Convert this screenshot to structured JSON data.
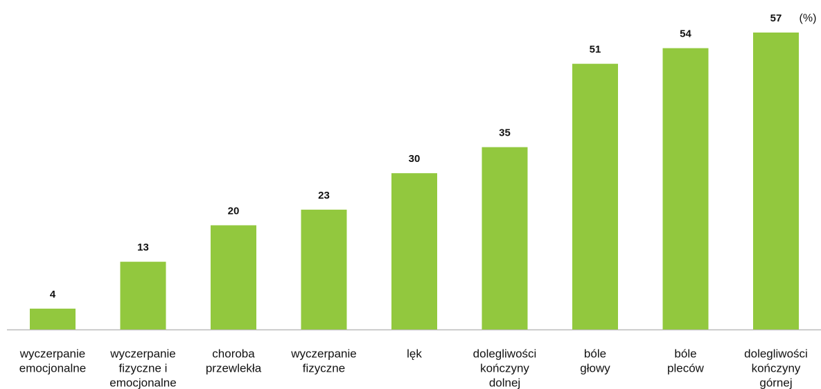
{
  "chart_data": {
    "type": "bar",
    "unit": "(%)",
    "categories": [
      [
        "wyczerpanie",
        "emocjonalne"
      ],
      [
        "wyczerpanie",
        "fizyczne i",
        "emocjonalne"
      ],
      [
        "choroba",
        "przewlekła"
      ],
      [
        "wyczerpanie",
        "fizyczne"
      ],
      [
        "lęk"
      ],
      [
        "dolegliwości",
        "kończyny",
        "dolnej"
      ],
      [
        "bóle",
        "głowy"
      ],
      [
        "bóle",
        "pleców"
      ],
      [
        "dolegliwości",
        "kończyny",
        "górnej"
      ]
    ],
    "values": [
      4,
      13,
      20,
      23,
      30,
      35,
      51,
      54,
      57
    ],
    "color": "#92c83e"
  }
}
